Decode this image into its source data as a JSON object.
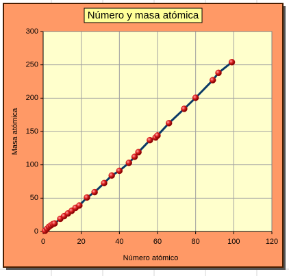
{
  "chart_data": {
    "type": "scatter",
    "title": "Número y masa atómica",
    "x_label": "Número atómico",
    "y_label": "Masa atómica",
    "x": [
      1,
      2,
      3,
      4,
      5,
      6,
      9,
      11,
      13,
      15,
      17,
      19,
      23,
      27,
      32,
      36,
      40,
      45,
      48,
      50,
      56,
      59,
      60,
      66,
      74,
      80,
      89,
      92,
      99
    ],
    "values": [
      1,
      4,
      7,
      9,
      11,
      12,
      19,
      23,
      27,
      31,
      35.5,
      39,
      51,
      59,
      72.6,
      84,
      91,
      103,
      112,
      119,
      137,
      141,
      144,
      162.5,
      184,
      200.6,
      227,
      238,
      254
    ],
    "color": "#cc1111",
    "line_color": "#0b3a66",
    "xlim": [
      0,
      120
    ],
    "xticks": [
      0,
      20,
      40,
      60,
      80,
      100,
      120
    ],
    "ylim": [
      0,
      300
    ],
    "yticks": [
      0,
      50,
      100,
      150,
      200,
      250,
      300
    ],
    "grid": true
  }
}
